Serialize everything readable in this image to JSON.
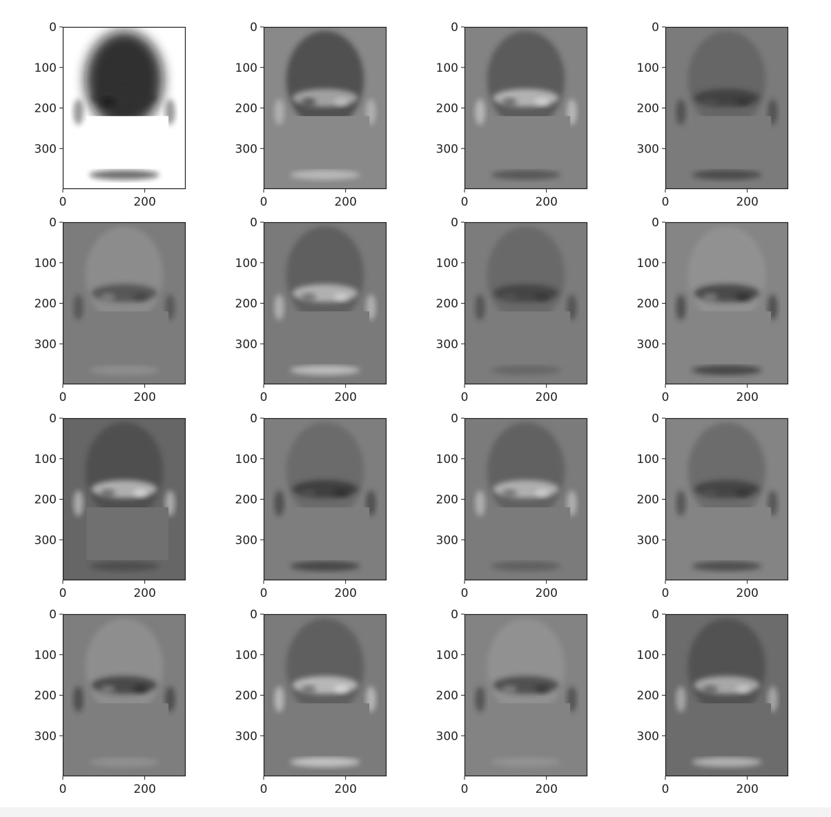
{
  "chart_data": [
    {
      "type": "heatmap",
      "panel": "component-1",
      "colormap": "gray_r",
      "xlim": [
        0,
        300
      ],
      "ylim": [
        400,
        0
      ],
      "xticks": [
        "0",
        "200"
      ],
      "yticks": [
        "0",
        "100",
        "200",
        "300"
      ],
      "masked_region": {
        "x": [
          58,
          258
        ],
        "y": [
          220,
          350
        ]
      }
    },
    {
      "type": "heatmap",
      "panel": "component-2",
      "colormap": "gray",
      "xlim": [
        0,
        300
      ],
      "ylim": [
        400,
        0
      ],
      "xticks": [
        "0",
        "200"
      ],
      "yticks": [
        "0",
        "100",
        "200",
        "300"
      ],
      "masked_region": {
        "x": [
          58,
          258
        ],
        "y": [
          220,
          350
        ]
      }
    },
    {
      "type": "heatmap",
      "panel": "component-3",
      "colormap": "gray",
      "xlim": [
        0,
        300
      ],
      "ylim": [
        400,
        0
      ],
      "xticks": [
        "0",
        "200"
      ],
      "yticks": [
        "0",
        "100",
        "200",
        "300"
      ],
      "masked_region": {
        "x": [
          58,
          258
        ],
        "y": [
          220,
          350
        ]
      }
    },
    {
      "type": "heatmap",
      "panel": "component-4",
      "colormap": "gray",
      "xlim": [
        0,
        300
      ],
      "ylim": [
        400,
        0
      ],
      "xticks": [
        "0",
        "200"
      ],
      "yticks": [
        "0",
        "100",
        "200",
        "300"
      ],
      "masked_region": {
        "x": [
          58,
          258
        ],
        "y": [
          220,
          350
        ]
      }
    },
    {
      "type": "heatmap",
      "panel": "component-5",
      "colormap": "gray",
      "xlim": [
        0,
        300
      ],
      "ylim": [
        400,
        0
      ],
      "xticks": [
        "0",
        "200"
      ],
      "yticks": [
        "0",
        "100",
        "200",
        "300"
      ],
      "masked_region": {
        "x": [
          58,
          258
        ],
        "y": [
          220,
          350
        ]
      }
    },
    {
      "type": "heatmap",
      "panel": "component-6",
      "colormap": "gray",
      "xlim": [
        0,
        300
      ],
      "ylim": [
        400,
        0
      ],
      "xticks": [
        "0",
        "200"
      ],
      "yticks": [
        "0",
        "100",
        "200",
        "300"
      ],
      "masked_region": {
        "x": [
          58,
          258
        ],
        "y": [
          220,
          350
        ]
      }
    },
    {
      "type": "heatmap",
      "panel": "component-7",
      "colormap": "gray",
      "xlim": [
        0,
        300
      ],
      "ylim": [
        400,
        0
      ],
      "xticks": [
        "0",
        "200"
      ],
      "yticks": [
        "0",
        "100",
        "200",
        "300"
      ],
      "masked_region": {
        "x": [
          58,
          258
        ],
        "y": [
          220,
          350
        ]
      }
    },
    {
      "type": "heatmap",
      "panel": "component-8",
      "colormap": "gray",
      "xlim": [
        0,
        300
      ],
      "ylim": [
        400,
        0
      ],
      "xticks": [
        "0",
        "200"
      ],
      "yticks": [
        "0",
        "100",
        "200",
        "300"
      ],
      "masked_region": {
        "x": [
          58,
          258
        ],
        "y": [
          220,
          350
        ]
      }
    },
    {
      "type": "heatmap",
      "panel": "component-9",
      "colormap": "gray",
      "xlim": [
        0,
        300
      ],
      "ylim": [
        400,
        0
      ],
      "xticks": [
        "0",
        "200"
      ],
      "yticks": [
        "0",
        "100",
        "200",
        "300"
      ],
      "masked_region": {
        "x": [
          58,
          258
        ],
        "y": [
          220,
          350
        ]
      }
    },
    {
      "type": "heatmap",
      "panel": "component-10",
      "colormap": "gray",
      "xlim": [
        0,
        300
      ],
      "ylim": [
        400,
        0
      ],
      "xticks": [
        "0",
        "200"
      ],
      "yticks": [
        "0",
        "100",
        "200",
        "300"
      ],
      "masked_region": {
        "x": [
          58,
          258
        ],
        "y": [
          220,
          350
        ]
      }
    },
    {
      "type": "heatmap",
      "panel": "component-11",
      "colormap": "gray",
      "xlim": [
        0,
        300
      ],
      "ylim": [
        400,
        0
      ],
      "xticks": [
        "0",
        "200"
      ],
      "yticks": [
        "0",
        "100",
        "200",
        "300"
      ],
      "masked_region": {
        "x": [
          58,
          258
        ],
        "y": [
          220,
          350
        ]
      }
    },
    {
      "type": "heatmap",
      "panel": "component-12",
      "colormap": "gray",
      "xlim": [
        0,
        300
      ],
      "ylim": [
        400,
        0
      ],
      "xticks": [
        "0",
        "200"
      ],
      "yticks": [
        "0",
        "100",
        "200",
        "300"
      ],
      "masked_region": {
        "x": [
          58,
          258
        ],
        "y": [
          220,
          350
        ]
      }
    },
    {
      "type": "heatmap",
      "panel": "component-13",
      "colormap": "gray",
      "xlim": [
        0,
        300
      ],
      "ylim": [
        400,
        0
      ],
      "xticks": [
        "0",
        "200"
      ],
      "yticks": [
        "0",
        "100",
        "200",
        "300"
      ],
      "masked_region": {
        "x": [
          58,
          258
        ],
        "y": [
          220,
          350
        ]
      }
    },
    {
      "type": "heatmap",
      "panel": "component-14",
      "colormap": "gray",
      "xlim": [
        0,
        300
      ],
      "ylim": [
        400,
        0
      ],
      "xticks": [
        "0",
        "200"
      ],
      "yticks": [
        "0",
        "100",
        "200",
        "300"
      ],
      "masked_region": {
        "x": [
          58,
          258
        ],
        "y": [
          220,
          350
        ]
      }
    },
    {
      "type": "heatmap",
      "panel": "component-15",
      "colormap": "gray",
      "xlim": [
        0,
        300
      ],
      "ylim": [
        400,
        0
      ],
      "xticks": [
        "0",
        "200"
      ],
      "yticks": [
        "0",
        "100",
        "200",
        "300"
      ],
      "masked_region": {
        "x": [
          58,
          258
        ],
        "y": [
          220,
          350
        ]
      }
    },
    {
      "type": "heatmap",
      "panel": "component-16",
      "colormap": "gray",
      "xlim": [
        0,
        300
      ],
      "ylim": [
        400,
        0
      ],
      "xticks": [
        "0",
        "200"
      ],
      "yticks": [
        "0",
        "100",
        "200",
        "300"
      ],
      "masked_region": {
        "x": [
          58,
          258
        ],
        "y": [
          220,
          350
        ]
      }
    }
  ],
  "panel_shading": {
    "backgrounds": [
      "#ffffff",
      "#898989",
      "#838383",
      "#7b7b7b",
      "#7c7c7c",
      "#7a7a7a",
      "#7c7c7c",
      "#858585",
      "#666666",
      "#7e7e7e",
      "#7b7b7b",
      "#848484",
      "#7e7e7e",
      "#7b7b7b",
      "#838383",
      "#6c6c6c"
    ],
    "mask_colors": [
      "#ffffff",
      "#898989",
      "#838383",
      "#7b7b7b",
      "#7c7c7c",
      "#7a7a7a",
      "#7c7c7c",
      "#858585",
      "#707070",
      "#7e7e7e",
      "#7b7b7b",
      "#848484",
      "#7e7e7e",
      "#7b7b7b",
      "#838383",
      "#6c6c6c"
    ],
    "hair_tones": [
      "#111111",
      "#222222",
      "#3a3a3a",
      "#555555",
      "#9a9a9a",
      "#4a4a4a",
      "#5a5a5a",
      "#9c9c9c",
      "#3c3c3c",
      "#5c5c5c",
      "#4e4e4e",
      "#5a5a5a",
      "#9c9c9c",
      "#4a4a4a",
      "#9d9d9d",
      "#3e3e3e"
    ],
    "feature_tones": [
      "#333333",
      "#d8d8d8",
      "#ededed",
      "#2a2a2a",
      "#343434",
      "#e6e6e6",
      "#2e2e2e",
      "#1c1c1c",
      "#f0f0f0",
      "#222222",
      "#e4e4e4",
      "#2c2c2c",
      "#1e1e1e",
      "#f2f2f2",
      "#262626",
      "#e0e0e0"
    ]
  }
}
